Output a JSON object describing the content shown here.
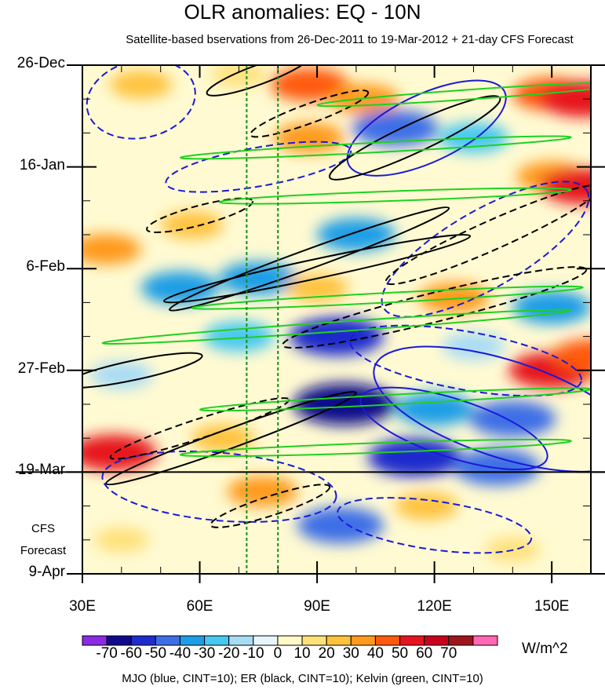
{
  "chart_data": {
    "type": "heatmap",
    "title": "OLR anomalies: EQ - 10N",
    "subtitle": "Satellite-based bservations from 26-Dec-2011 to 19-Mar-2012 + 21-day CFS Forecast",
    "x_ticks": [
      {
        "value": 30,
        "label": "30E"
      },
      {
        "value": 60,
        "label": "60E"
      },
      {
        "value": 90,
        "label": "90E"
      },
      {
        "value": 120,
        "label": "120E"
      },
      {
        "value": 150,
        "label": "150E"
      }
    ],
    "xlim": [
      30,
      160
    ],
    "y_ticks": [
      {
        "value": "2011-12-26",
        "label": "26-Dec"
      },
      {
        "value": "2012-01-16",
        "label": "16-Jan"
      },
      {
        "value": "2012-02-06",
        "label": "6-Feb"
      },
      {
        "value": "2012-02-27",
        "label": "27-Feb"
      },
      {
        "value": "2012-03-19",
        "label": "19-Mar"
      },
      {
        "value": "2012-04-09",
        "label": "9-Apr"
      }
    ],
    "ylim": [
      "2011-12-26",
      "2012-04-09"
    ],
    "forecast_start": "2012-03-19",
    "forecast_label": [
      "CFS",
      "Forecast"
    ],
    "reference_longitudes": [
      72,
      80
    ],
    "colorbar": {
      "levels": [
        -70,
        -60,
        -50,
        -40,
        -30,
        -20,
        -10,
        0,
        10,
        20,
        30,
        40,
        50,
        60,
        70
      ],
      "labels": [
        "-70",
        "-60",
        "-50",
        "-40",
        "-30",
        "-20",
        "-10",
        "0",
        "10",
        "20",
        "30",
        "40",
        "50",
        "60",
        "70"
      ],
      "colors": [
        "#8c2ae6",
        "#0f0a8c",
        "#1f2ccc",
        "#3d6ee6",
        "#1e9ee6",
        "#46c8f0",
        "#a8dcf5",
        "#e8f6fa",
        "#fffac8",
        "#ffe17a",
        "#ffc23c",
        "#ff9a1e",
        "#ff5a0f",
        "#e6141e",
        "#c8001e",
        "#a0141e",
        "#ff69b4"
      ],
      "units": "W/m^2"
    },
    "anomalies": [
      {
        "lon": 45,
        "date": "2011-12-30",
        "value": 20
      },
      {
        "lon": 70,
        "date": "2011-12-28",
        "value": 10
      },
      {
        "lon": 88,
        "date": "2011-12-30",
        "value": 40
      },
      {
        "lon": 102,
        "date": "2012-01-02",
        "value": 30
      },
      {
        "lon": 150,
        "date": "2012-01-01",
        "value": 40
      },
      {
        "lon": 158,
        "date": "2012-01-02",
        "value": 50
      },
      {
        "lon": 88,
        "date": "2012-01-10",
        "value": 30
      },
      {
        "lon": 110,
        "date": "2012-01-08",
        "value": -50
      },
      {
        "lon": 130,
        "date": "2012-01-10",
        "value": -30
      },
      {
        "lon": 150,
        "date": "2012-01-18",
        "value": 30
      },
      {
        "lon": 158,
        "date": "2012-01-20",
        "value": 50
      },
      {
        "lon": 36,
        "date": "2012-02-02",
        "value": 30
      },
      {
        "lon": 58,
        "date": "2012-01-28",
        "value": 20
      },
      {
        "lon": 100,
        "date": "2012-01-30",
        "value": -40
      },
      {
        "lon": 75,
        "date": "2012-02-08",
        "value": -40
      },
      {
        "lon": 55,
        "date": "2012-02-10",
        "value": -40
      },
      {
        "lon": 90,
        "date": "2012-02-10",
        "value": 20
      },
      {
        "lon": 125,
        "date": "2012-02-12",
        "value": 30
      },
      {
        "lon": 150,
        "date": "2012-02-14",
        "value": -40
      },
      {
        "lon": 95,
        "date": "2012-02-20",
        "value": -60
      },
      {
        "lon": 70,
        "date": "2012-02-20",
        "value": -30
      },
      {
        "lon": 130,
        "date": "2012-02-22",
        "value": -20
      },
      {
        "lon": 150,
        "date": "2012-02-27",
        "value": 50
      },
      {
        "lon": 160,
        "date": "2012-02-24",
        "value": 40
      },
      {
        "lon": 40,
        "date": "2012-02-28",
        "value": -20
      },
      {
        "lon": 97,
        "date": "2012-03-05",
        "value": -70
      },
      {
        "lon": 120,
        "date": "2012-03-06",
        "value": -40
      },
      {
        "lon": 140,
        "date": "2012-03-08",
        "value": -50
      },
      {
        "lon": 38,
        "date": "2012-03-15",
        "value": 50
      },
      {
        "lon": 66,
        "date": "2012-03-12",
        "value": 20
      },
      {
        "lon": 115,
        "date": "2012-03-16",
        "value": -60
      },
      {
        "lon": 136,
        "date": "2012-03-18",
        "value": -50
      },
      {
        "lon": 76,
        "date": "2012-03-23",
        "value": 30
      },
      {
        "lon": 96,
        "date": "2012-03-30",
        "value": -50
      },
      {
        "lon": 118,
        "date": "2012-03-26",
        "value": 20
      },
      {
        "lon": 40,
        "date": "2012-04-02",
        "value": 10
      },
      {
        "lon": 140,
        "date": "2012-04-04",
        "value": 10
      }
    ],
    "filters": [
      {
        "name": "MJO",
        "color": "#1a1ad6",
        "contours": [
          {
            "lon": 45,
            "date": "2012-01-02",
            "rx": 14,
            "ry_days": 8,
            "angle": -12,
            "value": -10
          },
          {
            "lon": 118,
            "date": "2012-01-08",
            "rx": 22,
            "ry_days": 7,
            "angle": -25,
            "value": 10
          },
          {
            "lon": 75,
            "date": "2012-01-16",
            "rx": 24,
            "ry_days": 4,
            "angle": -10,
            "value": -10
          },
          {
            "lon": 133,
            "date": "2012-02-02",
            "rx": 30,
            "ry_days": 8,
            "angle": -30,
            "value": -10
          },
          {
            "lon": 138,
            "date": "2012-03-06",
            "rx": 35,
            "ry_days": 10,
            "angle": 18,
            "value": 10
          },
          {
            "lon": 125,
            "date": "2012-03-10",
            "rx": 25,
            "ry_days": 6,
            "angle": 18,
            "value": 20
          },
          {
            "lon": 128,
            "date": "2012-02-25",
            "rx": 30,
            "ry_days": 6,
            "angle": 10,
            "value": -10
          },
          {
            "lon": 65,
            "date": "2012-03-22",
            "rx": 30,
            "ry_days": 7,
            "angle": 5,
            "value": -10
          },
          {
            "lon": 120,
            "date": "2012-03-30",
            "rx": 25,
            "ry_days": 5,
            "angle": 8,
            "value": -10
          }
        ]
      },
      {
        "name": "ER",
        "color": "#000000",
        "contours": [
          {
            "lon": 75,
            "date": "2011-12-28",
            "rx": 14,
            "ry_days": 2,
            "angle": -20,
            "value": 10
          },
          {
            "lon": 88,
            "date": "2012-01-05",
            "rx": 16,
            "ry_days": 2,
            "angle": -20,
            "value": -10
          },
          {
            "lon": 115,
            "date": "2012-01-10",
            "rx": 24,
            "ry_days": 3,
            "angle": -25,
            "value": 10
          },
          {
            "lon": 60,
            "date": "2012-01-26",
            "rx": 14,
            "ry_days": 2,
            "angle": -15,
            "value": -10
          },
          {
            "lon": 88,
            "date": "2012-02-04",
            "rx": 38,
            "ry_days": 2,
            "angle": -20,
            "value": 10
          },
          {
            "lon": 135,
            "date": "2012-01-30",
            "rx": 30,
            "ry_days": 3,
            "angle": -24,
            "value": -10
          },
          {
            "lon": 90,
            "date": "2012-02-06",
            "rx": 40,
            "ry_days": 2,
            "angle": -12,
            "value": 10
          },
          {
            "lon": 120,
            "date": "2012-02-14",
            "rx": 40,
            "ry_days": 3,
            "angle": -14,
            "value": -10
          },
          {
            "lon": 43,
            "date": "2012-02-27",
            "rx": 18,
            "ry_days": 2,
            "angle": -12,
            "value": 10
          },
          {
            "lon": 60,
            "date": "2012-03-10",
            "rx": 24,
            "ry_days": 2,
            "angle": -18,
            "value": -10
          },
          {
            "lon": 68,
            "date": "2012-03-12",
            "rx": 34,
            "ry_days": 2,
            "angle": -20,
            "value": 10
          },
          {
            "lon": 78,
            "date": "2012-03-26",
            "rx": 16,
            "ry_days": 2,
            "angle": -18,
            "value": -10
          }
        ]
      },
      {
        "name": "Kelvin",
        "color": "#20d020",
        "contours": [
          {
            "lon": 130,
            "date": "2012-01-01",
            "rx": 40,
            "ry_days": 1,
            "angle": -4,
            "value": 10
          },
          {
            "lon": 105,
            "date": "2012-01-12",
            "rx": 50,
            "ry_days": 1,
            "angle": -3,
            "value": 10
          },
          {
            "lon": 110,
            "date": "2012-01-22",
            "rx": 45,
            "ry_days": 1,
            "angle": -2,
            "value": 10
          },
          {
            "lon": 108,
            "date": "2012-02-12",
            "rx": 50,
            "ry_days": 1,
            "angle": -3,
            "value": 10
          },
          {
            "lon": 95,
            "date": "2012-02-18",
            "rx": 60,
            "ry_days": 1,
            "angle": -4,
            "value": 10
          },
          {
            "lon": 110,
            "date": "2012-03-04",
            "rx": 50,
            "ry_days": 1,
            "angle": -3,
            "value": 10
          },
          {
            "lon": 105,
            "date": "2012-03-14",
            "rx": 50,
            "ry_days": 1,
            "angle": -2,
            "value": 10
          }
        ]
      }
    ]
  },
  "footer": "MJO (blue, CINT=10); ER (black, CINT=10); Kelvin (green, CINT=10)"
}
